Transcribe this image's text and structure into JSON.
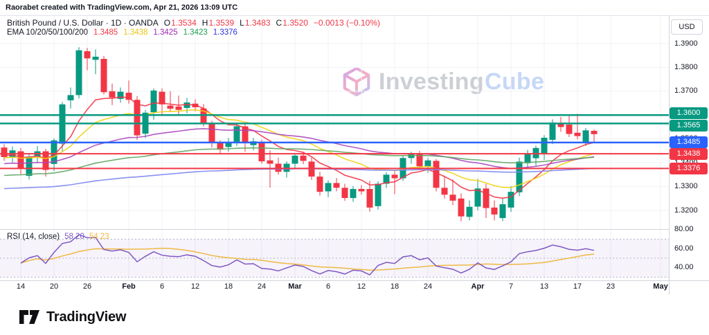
{
  "attribution": "Raorabet created with TradingView.com, Apr 21, 2026 13:09 UTC",
  "watermark": {
    "investing": "Investing",
    "cube": "Cube"
  },
  "symbol_legend": {
    "title": "British Pound / U.S. Dollar · 1D · OANDA",
    "ohlc": [
      {
        "k": "O",
        "v": "1.3534"
      },
      {
        "k": "H",
        "v": "1.3539"
      },
      {
        "k": "L",
        "v": "1.3483"
      },
      {
        "k": "C",
        "v": "1.3520"
      }
    ],
    "change": "−0.0013 (−0.10%)"
  },
  "ema_legend": {
    "label": "EMA 10/20/50/100/200",
    "values": [
      {
        "v": "1.3485",
        "color": "#f23645"
      },
      {
        "v": "1.3438",
        "color": "#e8c50e"
      },
      {
        "v": "1.3425",
        "color": "#9c27b0"
      },
      {
        "v": "1.3423",
        "color": "#1a9a4d"
      },
      {
        "v": "1.3376",
        "color": "#2d34dd"
      }
    ]
  },
  "rsi_legend": {
    "label": "RSI (14, close)",
    "rsi_value": "58.20",
    "ma_value": "54.23",
    "rsi_color": "#7e57c2",
    "ma_color": "#efb943"
  },
  "price_axis": {
    "currency_button": "USD",
    "ticks": [
      {
        "label": "1.3900",
        "p": 1.39
      },
      {
        "label": "1.3800",
        "p": 1.38
      },
      {
        "label": "1.3700",
        "p": 1.37
      },
      {
        "label": "1.3500",
        "p": 1.35
      },
      {
        "label": "1.3400",
        "p": 1.34
      },
      {
        "label": "1.3300",
        "p": 1.33
      },
      {
        "label": "1.3200",
        "p": 1.32
      }
    ],
    "badges": [
      {
        "label": "1.3600",
        "p": 1.36,
        "color": "#089981",
        "dy": -3
      },
      {
        "label": "1.3565",
        "p": 1.3565,
        "color": "#089981",
        "dy": 3
      },
      {
        "label": "1.3485",
        "p": 1.3485,
        "color": "#2962ff",
        "dy": 0
      },
      {
        "label": "1.3438",
        "p": 1.3438,
        "color": "#f23645",
        "dy": 0
      },
      {
        "label": "1.3376",
        "p": 1.3376,
        "color": "#f23645",
        "dy": 0
      }
    ]
  },
  "rsi_axis": {
    "ticks": [
      {
        "label": "80.00",
        "v": 80
      },
      {
        "label": "60.00",
        "v": 60
      },
      {
        "label": "40.00",
        "v": 40
      }
    ]
  },
  "time_axis": {
    "ticks": [
      {
        "label": "14",
        "i": 2,
        "bold": false
      },
      {
        "label": "20",
        "i": 6,
        "bold": false
      },
      {
        "label": "26",
        "i": 10,
        "bold": false
      },
      {
        "label": "Feb",
        "i": 15,
        "bold": true
      },
      {
        "label": "6",
        "i": 19,
        "bold": false
      },
      {
        "label": "12",
        "i": 23,
        "bold": false
      },
      {
        "label": "18",
        "i": 27,
        "bold": false
      },
      {
        "label": "24",
        "i": 31,
        "bold": false
      },
      {
        "label": "Mar",
        "i": 35,
        "bold": true
      },
      {
        "label": "6",
        "i": 39,
        "bold": false
      },
      {
        "label": "12",
        "i": 43,
        "bold": false
      },
      {
        "label": "18",
        "i": 47,
        "bold": false
      },
      {
        "label": "24",
        "i": 51,
        "bold": false
      },
      {
        "label": "Apr",
        "i": 57,
        "bold": true
      },
      {
        "label": "7",
        "i": 61,
        "bold": false
      },
      {
        "label": "13",
        "i": 65,
        "bold": false
      },
      {
        "label": "17",
        "i": 69,
        "bold": false
      },
      {
        "label": "23",
        "i": 73,
        "bold": false
      },
      {
        "label": "May",
        "i": 79,
        "bold": true
      }
    ]
  },
  "logo": {
    "text": "TradingView"
  },
  "chart_data": {
    "type": "candlestick",
    "title": "British Pound / U.S. Dollar",
    "interval": "1D",
    "provider": "OANDA",
    "current_bar": {
      "open": 1.3534,
      "high": 1.3539,
      "low": 1.3483,
      "close": 1.352,
      "change": -0.0013,
      "change_pct": -0.1
    },
    "up_color": "#089981",
    "down_color": "#f23645",
    "ylim": [
      1.315,
      1.391
    ],
    "dates": [
      "Jan 12",
      "Jan 13",
      "Jan 14",
      "Jan 15",
      "Jan 16",
      "Jan 19",
      "Jan 20",
      "Jan 21",
      "Jan 22",
      "Jan 23",
      "Jan 26",
      "Jan 27",
      "Jan 28",
      "Jan 29",
      "Jan 30",
      "Feb 2",
      "Feb 3",
      "Feb 4",
      "Feb 5",
      "Feb 6",
      "Feb 9",
      "Feb 10",
      "Feb 11",
      "Feb 12",
      "Feb 13",
      "Feb 16",
      "Feb 17",
      "Feb 18",
      "Feb 19",
      "Feb 20",
      "Feb 23",
      "Feb 24",
      "Feb 25",
      "Feb 26",
      "Feb 27",
      "Mar 2",
      "Mar 3",
      "Mar 4",
      "Mar 5",
      "Mar 6",
      "Mar 9",
      "Mar 10",
      "Mar 11",
      "Mar 12",
      "Mar 13",
      "Mar 16",
      "Mar 17",
      "Mar 18",
      "Mar 19",
      "Mar 20",
      "Mar 23",
      "Mar 24",
      "Mar 25",
      "Mar 26",
      "Mar 27",
      "Mar 30",
      "Mar 31",
      "Apr 1",
      "Apr 2",
      "Apr 3",
      "Apr 6",
      "Apr 7",
      "Apr 8",
      "Apr 9",
      "Apr 10",
      "Apr 13",
      "Apr 14",
      "Apr 15",
      "Apr 16",
      "Apr 17",
      "Apr 20",
      "Apr 21"
    ],
    "candles": [
      [
        1.3464,
        1.3478,
        1.3408,
        1.3424
      ],
      [
        1.3424,
        1.3468,
        1.3402,
        1.3452
      ],
      [
        1.3448,
        1.3462,
        1.3352,
        1.3378
      ],
      [
        1.3345,
        1.3436,
        1.333,
        1.3426
      ],
      [
        1.3426,
        1.347,
        1.3398,
        1.3448
      ],
      [
        1.3448,
        1.3458,
        1.3342,
        1.337
      ],
      [
        1.3395,
        1.3502,
        1.3365,
        1.3494
      ],
      [
        1.348,
        1.3655,
        1.3444,
        1.3645
      ],
      [
        1.3662,
        1.3716,
        1.3628,
        1.3684
      ],
      [
        1.3684,
        1.3885,
        1.367,
        1.3872
      ],
      [
        1.3868,
        1.3882,
        1.3788,
        1.3838
      ],
      [
        1.3832,
        1.3876,
        1.3772,
        1.3845
      ],
      [
        1.3836,
        1.3848,
        1.3686,
        1.3696
      ],
      [
        1.37,
        1.3732,
        1.3642,
        1.3674
      ],
      [
        1.3668,
        1.3716,
        1.3652,
        1.3698
      ],
      [
        1.3694,
        1.3745,
        1.3648,
        1.3664
      ],
      [
        1.3664,
        1.368,
        1.3496,
        1.3515
      ],
      [
        1.3522,
        1.3622,
        1.3504,
        1.361
      ],
      [
        1.3612,
        1.3712,
        1.358,
        1.3703
      ],
      [
        1.3698,
        1.3712,
        1.3598,
        1.3645
      ],
      [
        1.364,
        1.37,
        1.3612,
        1.3627
      ],
      [
        1.3636,
        1.3682,
        1.36,
        1.3622
      ],
      [
        1.363,
        1.3672,
        1.3608,
        1.3653
      ],
      [
        1.3648,
        1.3666,
        1.3616,
        1.3633
      ],
      [
        1.3628,
        1.3646,
        1.3552,
        1.3567
      ],
      [
        1.3563,
        1.3576,
        1.3464,
        1.3482
      ],
      [
        1.3482,
        1.3494,
        1.3436,
        1.3455
      ],
      [
        1.3466,
        1.3504,
        1.3446,
        1.3484
      ],
      [
        1.3488,
        1.3566,
        1.347,
        1.3553
      ],
      [
        1.3553,
        1.3566,
        1.3446,
        1.3485
      ],
      [
        1.3474,
        1.3504,
        1.3452,
        1.349
      ],
      [
        1.3488,
        1.3496,
        1.3396,
        1.3406
      ],
      [
        1.341,
        1.3452,
        1.3296,
        1.3396
      ],
      [
        1.3396,
        1.3422,
        1.335,
        1.3362
      ],
      [
        1.3362,
        1.3406,
        1.3338,
        1.3396
      ],
      [
        1.3396,
        1.3438,
        1.3378,
        1.343
      ],
      [
        1.343,
        1.3446,
        1.3394,
        1.3408
      ],
      [
        1.3405,
        1.3422,
        1.3328,
        1.3342
      ],
      [
        1.3342,
        1.3362,
        1.3262,
        1.3278
      ],
      [
        1.328,
        1.3326,
        1.3256,
        1.3315
      ],
      [
        1.3315,
        1.3336,
        1.328,
        1.3295
      ],
      [
        1.3295,
        1.3312,
        1.324,
        1.3252
      ],
      [
        1.3252,
        1.3302,
        1.3236,
        1.329
      ],
      [
        1.329,
        1.3306,
        1.3266,
        1.328
      ],
      [
        1.329,
        1.3324,
        1.3195,
        1.3212
      ],
      [
        1.3218,
        1.3322,
        1.3204,
        1.3312
      ],
      [
        1.3312,
        1.336,
        1.3294,
        1.335
      ],
      [
        1.335,
        1.3366,
        1.3268,
        1.3335
      ],
      [
        1.3335,
        1.343,
        1.3324,
        1.342
      ],
      [
        1.342,
        1.3446,
        1.3396,
        1.3438
      ],
      [
        1.3438,
        1.345,
        1.337,
        1.3385
      ],
      [
        1.3385,
        1.342,
        1.3358,
        1.341
      ],
      [
        1.3408,
        1.3416,
        1.328,
        1.3295
      ],
      [
        1.3295,
        1.3346,
        1.325,
        1.3266
      ],
      [
        1.3266,
        1.333,
        1.3222,
        1.3241
      ],
      [
        1.325,
        1.3272,
        1.3155,
        1.3175
      ],
      [
        1.3173,
        1.3242,
        1.3158,
        1.3215
      ],
      [
        1.3216,
        1.3332,
        1.32,
        1.3292
      ],
      [
        1.3292,
        1.3312,
        1.3168,
        1.321
      ],
      [
        1.3212,
        1.3242,
        1.3158,
        1.3183
      ],
      [
        1.3168,
        1.3252,
        1.3155,
        1.3226
      ],
      [
        1.3212,
        1.3302,
        1.3194,
        1.3278
      ],
      [
        1.3276,
        1.3422,
        1.326,
        1.3405
      ],
      [
        1.3398,
        1.3454,
        1.3376,
        1.344
      ],
      [
        1.3419,
        1.3472,
        1.3388,
        1.3462
      ],
      [
        1.344,
        1.3516,
        1.3412,
        1.3505
      ],
      [
        1.3496,
        1.3582,
        1.3478,
        1.3569
      ],
      [
        1.3564,
        1.3592,
        1.353,
        1.355
      ],
      [
        1.356,
        1.3598,
        1.3508,
        1.3521
      ],
      [
        1.3526,
        1.3606,
        1.3498,
        1.3512
      ],
      [
        1.3483,
        1.3546,
        1.347,
        1.3536
      ],
      [
        1.3534,
        1.3539,
        1.3483,
        1.352
      ]
    ],
    "emas": {
      "periods": [
        10,
        20,
        50,
        100,
        200
      ],
      "line_colors": [
        "#f23645",
        "#f2d113",
        "#ab47bc",
        "#5fa55f",
        "#7c85f0"
      ],
      "seeds": [
        1.343,
        1.342,
        1.3395,
        1.3345,
        1.329
      ],
      "last_values": [
        1.3485,
        1.3438,
        1.3425,
        1.3423,
        1.3376
      ]
    },
    "horizontal_levels": [
      {
        "price": 1.36,
        "color": "#089981",
        "width": 2.5
      },
      {
        "price": 1.3565,
        "color": "#089981",
        "width": 2.5
      },
      {
        "price": 1.3485,
        "color": "#2962ff",
        "width": 2.5
      },
      {
        "price": 1.3438,
        "color": "#f23645",
        "width": 2
      },
      {
        "price": 1.3376,
        "color": "#f23645",
        "width": 2
      }
    ],
    "rsi": {
      "period": 14,
      "last": 58.2,
      "ma_last": 54.23,
      "line_color": "#7e57c2",
      "ma_color": "#efb943",
      "band": [
        30,
        70
      ],
      "dashed_levels": [
        70,
        50,
        30
      ],
      "axis_range": [
        80,
        40
      ]
    }
  }
}
